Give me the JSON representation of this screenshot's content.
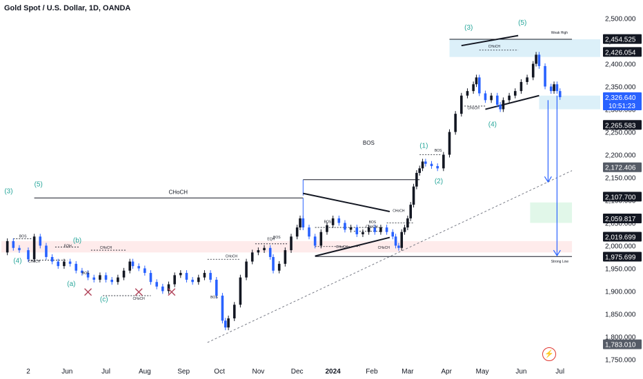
{
  "header": {
    "title": "Gold Spot / U.S. Dollar, 1D, OANDA"
  },
  "colors": {
    "up": "#131722",
    "down": "#2962ff",
    "accent": "#26a69a",
    "zone_blue": "#cdeaf7",
    "zone_red": "#fde3e3",
    "zone_green": "#d9f5e4",
    "arrow": "#2962ff",
    "marker": "#b2475d"
  },
  "chart_data": {
    "type": "candlestick",
    "title": "Gold Spot / U.S. Dollar, 1D, OANDA",
    "ylim": [
      1740,
      2510
    ],
    "xlim": [
      0,
      200
    ],
    "y_ticks": [
      1750,
      1800,
      1850,
      1900,
      1950,
      2000,
      2050,
      2100,
      2150,
      2200,
      2250,
      2300,
      2350,
      2400,
      2450,
      2500
    ],
    "y_tick_labels": [
      "1,750.000",
      "1,800.000",
      "1,850.000",
      "1,900.000",
      "1,950.000",
      "2,000.000",
      "2,050.000",
      "2,100.000",
      "2,150.000",
      "2,200.000",
      "2,250.000",
      "2,300.000",
      "2,350.000",
      "2,400.000",
      "2,450.000",
      "2,500.000"
    ],
    "x_labels": [
      {
        "label": "2",
        "x": 9
      },
      {
        "label": "Jun",
        "x": 22
      },
      {
        "label": "Jul",
        "x": 35
      },
      {
        "label": "Aug",
        "x": 48
      },
      {
        "label": "Sep",
        "x": 61
      },
      {
        "label": "Oct",
        "x": 73
      },
      {
        "label": "Nov",
        "x": 86
      },
      {
        "label": "Dec",
        "x": 99
      },
      {
        "label": "2024",
        "x": 111,
        "bold": true
      },
      {
        "label": "Feb",
        "x": 124
      },
      {
        "label": "Mar",
        "x": 136
      },
      {
        "label": "Apr",
        "x": 149
      },
      {
        "label": "May",
        "x": 161
      },
      {
        "label": "Jun",
        "x": 174
      },
      {
        "label": "Jul",
        "x": 187
      }
    ],
    "price_labels": [
      {
        "value": 2454.525,
        "label": "2,454.525",
        "style": "dark"
      },
      {
        "value": 2426.054,
        "label": "2,426.054",
        "style": "dark"
      },
      {
        "value": 2326.64,
        "label": "2,326.640",
        "sub": "10:51:23",
        "style": "blue"
      },
      {
        "value": 2265.583,
        "label": "2,265.583",
        "style": "dark"
      },
      {
        "value": 2172.406,
        "label": "2,172.406",
        "style": "grey"
      },
      {
        "value": 2107.7,
        "label": "2,107.700",
        "style": "dark"
      },
      {
        "value": 2059.817,
        "label": "2,059.817",
        "style": "dark"
      },
      {
        "value": 2019.699,
        "label": "2,019.699",
        "style": "dark"
      },
      {
        "value": 1975.699,
        "label": "1,975.699",
        "style": "dark"
      },
      {
        "value": 1783.01,
        "label": "1,783.010",
        "style": "grey"
      }
    ],
    "price_path": [
      [
        0,
        1985
      ],
      [
        2,
        2010
      ],
      [
        4,
        1995
      ],
      [
        6,
        1990
      ],
      [
        9,
        1970
      ],
      [
        11,
        2020
      ],
      [
        13,
        2000
      ],
      [
        15,
        1975
      ],
      [
        17,
        1965
      ],
      [
        19,
        1955
      ],
      [
        21,
        1965
      ],
      [
        23,
        1960
      ],
      [
        25,
        1945
      ],
      [
        27,
        1940
      ],
      [
        29,
        1930
      ],
      [
        31,
        1925
      ],
      [
        33,
        1935
      ],
      [
        35,
        1925
      ],
      [
        37,
        1920
      ],
      [
        39,
        1930
      ],
      [
        41,
        1945
      ],
      [
        43,
        1965
      ],
      [
        44,
        1955
      ],
      [
        46,
        1950
      ],
      [
        48,
        1940
      ],
      [
        50,
        1920
      ],
      [
        52,
        1910
      ],
      [
        54,
        1900
      ],
      [
        56,
        1915
      ],
      [
        58,
        1935
      ],
      [
        60,
        1940
      ],
      [
        62,
        1925
      ],
      [
        64,
        1920
      ],
      [
        66,
        1930
      ],
      [
        68,
        1940
      ],
      [
        70,
        1925
      ],
      [
        72,
        1890
      ],
      [
        74,
        1835
      ],
      [
        75,
        1820
      ],
      [
        76,
        1840
      ],
      [
        78,
        1870
      ],
      [
        80,
        1930
      ],
      [
        82,
        1965
      ],
      [
        84,
        1985
      ],
      [
        86,
        1990
      ],
      [
        88,
        1995
      ],
      [
        90,
        1975
      ],
      [
        91,
        1945
      ],
      [
        93,
        1960
      ],
      [
        95,
        1990
      ],
      [
        97,
        2020
      ],
      [
        99,
        2040
      ],
      [
        100,
        2060
      ],
      [
        101,
        2040
      ],
      [
        103,
        2020
      ],
      [
        105,
        2000
      ],
      [
        107,
        2030
      ],
      [
        109,
        2045
      ],
      [
        111,
        2060
      ],
      [
        113,
        2050
      ],
      [
        115,
        2035
      ],
      [
        117,
        2040
      ],
      [
        119,
        2025
      ],
      [
        121,
        2030
      ],
      [
        123,
        2040
      ],
      [
        125,
        2030
      ],
      [
        127,
        2040
      ],
      [
        129,
        2030
      ],
      [
        131,
        2020
      ],
      [
        132,
        2000
      ],
      [
        133,
        1995
      ],
      [
        134,
        2030
      ],
      [
        135,
        2040
      ],
      [
        136,
        2060
      ],
      [
        137,
        2090
      ],
      [
        138,
        2130
      ],
      [
        139,
        2160
      ],
      [
        140,
        2170
      ],
      [
        141,
        2185
      ],
      [
        142,
        2180
      ],
      [
        144,
        2175
      ],
      [
        146,
        2170
      ],
      [
        148,
        2200
      ],
      [
        150,
        2250
      ],
      [
        152,
        2290
      ],
      [
        154,
        2330
      ],
      [
        156,
        2340
      ],
      [
        158,
        2355
      ],
      [
        159,
        2370
      ],
      [
        160,
        2335
      ],
      [
        162,
        2320
      ],
      [
        164,
        2330
      ],
      [
        166,
        2310
      ],
      [
        167,
        2300
      ],
      [
        168,
        2320
      ],
      [
        170,
        2330
      ],
      [
        172,
        2340
      ],
      [
        174,
        2360
      ],
      [
        176,
        2370
      ],
      [
        178,
        2400
      ],
      [
        179,
        2420
      ],
      [
        180,
        2395
      ],
      [
        182,
        2350
      ],
      [
        184,
        2340
      ],
      [
        185,
        2355
      ],
      [
        186,
        2340
      ],
      [
        187,
        2326.64
      ]
    ],
    "annotations": [
      {
        "text": "(3)",
        "x": 1,
        "y": 2115,
        "color": "#26a69a",
        "size": 10
      },
      {
        "text": "(5)",
        "x": 11,
        "y": 2130,
        "color": "#26a69a",
        "size": 10
      },
      {
        "text": "(4)",
        "x": 4,
        "y": 1962,
        "color": "#26a69a",
        "size": 10
      },
      {
        "text": "(b)",
        "x": 24,
        "y": 2007,
        "color": "#26a69a",
        "size": 10
      },
      {
        "text": "(a)",
        "x": 22,
        "y": 1911,
        "color": "#26a69a",
        "size": 10
      },
      {
        "text": "(c)",
        "x": 33,
        "y": 1877,
        "color": "#26a69a",
        "size": 10
      },
      {
        "text": "(1)",
        "x": 140,
        "y": 2215,
        "color": "#26a69a",
        "size": 10
      },
      {
        "text": "(2)",
        "x": 145,
        "y": 2137,
        "color": "#26a69a",
        "size": 10
      },
      {
        "text": "(3)",
        "x": 155,
        "y": 2475,
        "color": "#26a69a",
        "size": 10
      },
      {
        "text": "(5)",
        "x": 173,
        "y": 2486,
        "color": "#26a69a",
        "size": 10
      },
      {
        "text": "(4)",
        "x": 163,
        "y": 2262,
        "color": "#26a69a",
        "size": 10
      },
      {
        "text": "CHoCH",
        "x": 56,
        "y": 2114,
        "color": "#131722",
        "size": 8
      },
      {
        "text": "BOS",
        "x": 121,
        "y": 2222,
        "color": "#131722",
        "size": 8
      },
      {
        "text": "BOS",
        "x": 6,
        "y": 2018,
        "color": "#131722",
        "size": 5
      },
      {
        "text": "EQH",
        "x": 21,
        "y": 1997,
        "color": "#131722",
        "size": 5
      },
      {
        "text": "CHoCH",
        "x": 33,
        "y": 1993,
        "color": "#131722",
        "size": 5
      },
      {
        "text": "CHoCH",
        "x": 9,
        "y": 1963,
        "color": "#131722",
        "size": 5
      },
      {
        "text": "BOS",
        "x": 27,
        "y": 1937,
        "color": "#131722",
        "size": 5
      },
      {
        "text": "CHoCH",
        "x": 44,
        "y": 1881,
        "color": "#131722",
        "size": 5
      },
      {
        "text": "CHoCH",
        "x": 75,
        "y": 1974,
        "color": "#131722",
        "size": 5
      },
      {
        "text": "BOS",
        "x": 70,
        "y": 1884,
        "color": "#131722",
        "size": 5
      },
      {
        "text": "EQH",
        "x": 89,
        "y": 2012,
        "color": "#131722",
        "size": 5
      },
      {
        "text": "BOS",
        "x": 91,
        "y": 2016,
        "color": "#131722",
        "size": 5
      },
      {
        "text": "BOS",
        "x": 108,
        "y": 2050,
        "color": "#131722",
        "size": 5
      },
      {
        "text": "CHoCH",
        "x": 112,
        "y": 1995,
        "color": "#131722",
        "size": 5
      },
      {
        "text": "CHoCH",
        "x": 122,
        "y": 2039,
        "color": "#131722",
        "size": 5
      },
      {
        "text": "BOS",
        "x": 123,
        "y": 2049,
        "color": "#131722",
        "size": 5
      },
      {
        "text": "CHoCH",
        "x": 126,
        "y": 1993,
        "color": "#131722",
        "size": 5
      },
      {
        "text": "CHoCH",
        "x": 131,
        "y": 2074,
        "color": "#131722",
        "size": 5
      },
      {
        "text": "BOS",
        "x": 145,
        "y": 2207,
        "color": "#131722",
        "size": 5
      },
      {
        "text": "CHoCH",
        "x": 163,
        "y": 2436,
        "color": "#131722",
        "size": 5
      },
      {
        "text": "CHoCH",
        "x": 156,
        "y": 2300,
        "color": "#131722",
        "size": 5
      },
      {
        "text": "Weak High",
        "x": 184,
        "y": 2466,
        "color": "#131722",
        "size": 5
      },
      {
        "text": "Strong Low",
        "x": 184,
        "y": 1963,
        "color": "#131722",
        "size": 5
      }
    ]
  }
}
